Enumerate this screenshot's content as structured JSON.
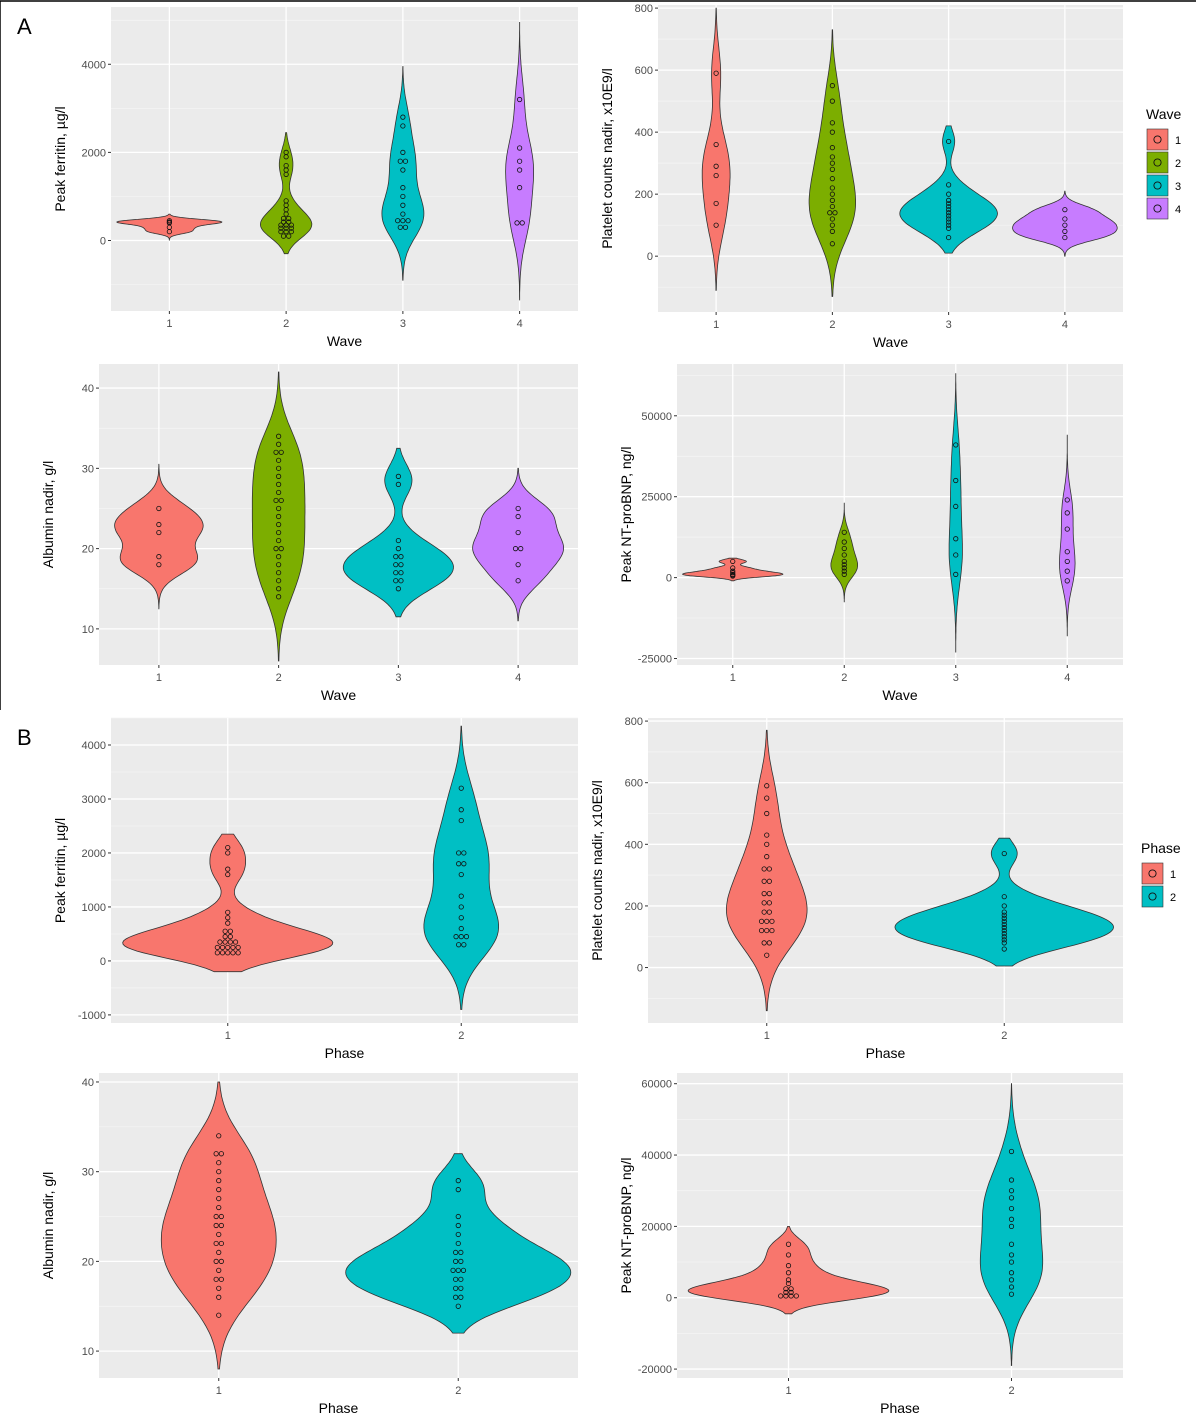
{
  "panel_labels": [
    "A",
    "B"
  ],
  "legends": {
    "wave": {
      "title": "Wave",
      "entries": [
        {
          "label": "1",
          "color": "#F8766D"
        },
        {
          "label": "2",
          "color": "#7CAE00"
        },
        {
          "label": "3",
          "color": "#00BFC4"
        },
        {
          "label": "4",
          "color": "#C77CFF"
        }
      ]
    },
    "phase": {
      "title": "Phase",
      "entries": [
        {
          "label": "1",
          "color": "#F8766D"
        },
        {
          "label": "2",
          "color": "#00BFC4"
        }
      ]
    }
  },
  "chart_data": [
    {
      "type": "violin",
      "xlabel": "Wave",
      "ylabel": "Peak ferritin, µg/l",
      "categories": [
        "1",
        "2",
        "3",
        "4"
      ],
      "yticks": [
        0,
        2000,
        4000
      ],
      "ylim": [
        -1600,
        5300
      ],
      "series": [
        {
          "name": "1",
          "color": "#F8766D",
          "range": [
            0,
            600
          ],
          "mode": 400,
          "max_width": 0.45,
          "points": [
            200,
            300,
            400,
            420,
            450
          ]
        },
        {
          "name": "2",
          "color": "#7CAE00",
          "range": [
            -300,
            2450
          ],
          "mode": 380,
          "max_width": 0.22,
          "points": [
            100,
            150,
            200,
            220,
            250,
            280,
            300,
            320,
            350,
            380,
            400,
            420,
            450,
            500,
            550,
            600,
            700,
            800,
            900,
            1500,
            1600,
            1700,
            1900,
            2000
          ]
        },
        {
          "name": "3",
          "color": "#00BFC4",
          "range": [
            -900,
            3950
          ],
          "mode": 500,
          "max_width": 0.18,
          "points": [
            300,
            400,
            450,
            500,
            500,
            600,
            800,
            1000,
            1200,
            1600,
            1800,
            1900,
            2000,
            2600,
            2800
          ]
        },
        {
          "name": "4",
          "color": "#C77CFF",
          "range": [
            -1350,
            4950
          ],
          "mode": 1500,
          "max_width": 0.12,
          "points": [
            400,
            500,
            1200,
            1600,
            1800,
            2100,
            3200
          ]
        }
      ]
    },
    {
      "type": "violin",
      "xlabel": "Wave",
      "ylabel": "Platelet counts nadir, x10E9/l",
      "categories": [
        "1",
        "2",
        "3",
        "4"
      ],
      "yticks": [
        0,
        200,
        400,
        600,
        800
      ],
      "ylim": [
        -180,
        810
      ],
      "series": [
        {
          "name": "1",
          "color": "#F8766D",
          "range": [
            -110,
            800
          ],
          "mode": 250,
          "max_width": 0.12,
          "points": [
            100,
            170,
            260,
            290,
            360,
            590
          ]
        },
        {
          "name": "2",
          "color": "#7CAE00",
          "range": [
            -130,
            730
          ],
          "mode": 160,
          "max_width": 0.2,
          "points": [
            40,
            80,
            100,
            120,
            140,
            150,
            160,
            180,
            200,
            220,
            250,
            280,
            300,
            320,
            350,
            400,
            430,
            500,
            550
          ]
        },
        {
          "name": "3",
          "color": "#00BFC4",
          "range": [
            10,
            420
          ],
          "mode": 140,
          "max_width": 0.42,
          "points": [
            60,
            90,
            100,
            110,
            120,
            130,
            140,
            150,
            160,
            170,
            180,
            200,
            230,
            370
          ]
        },
        {
          "name": "4",
          "color": "#C77CFF",
          "range": [
            0,
            210
          ],
          "mode": 110,
          "max_width": 0.45,
          "points": [
            60,
            80,
            100,
            120,
            150
          ]
        }
      ]
    },
    {
      "type": "violin",
      "xlabel": "Wave",
      "ylabel": "Albumin nadir, g/l",
      "categories": [
        "1",
        "2",
        "3",
        "4"
      ],
      "yticks": [
        10,
        20,
        30,
        40
      ],
      "ylim": [
        5.5,
        43
      ],
      "series": [
        {
          "name": "1",
          "color": "#F8766D",
          "range": [
            12.5,
            30.5
          ],
          "mode": 22,
          "max_width": 0.37,
          "points": [
            18,
            19,
            22,
            23,
            25
          ]
        },
        {
          "name": "2",
          "color": "#7CAE00",
          "range": [
            6,
            42
          ],
          "mode": 24,
          "max_width": 0.22,
          "points": [
            14,
            15,
            16,
            17,
            18,
            19,
            20,
            20,
            21,
            22,
            23,
            24,
            25,
            26,
            26,
            27,
            28,
            29,
            30,
            31,
            32,
            32,
            33,
            34
          ]
        },
        {
          "name": "3",
          "color": "#00BFC4",
          "range": [
            11.5,
            32.5
          ],
          "mode": 18.5,
          "max_width": 0.46,
          "points": [
            15,
            16,
            16,
            17,
            17,
            18,
            18,
            19,
            19,
            20,
            21,
            28,
            29
          ]
        },
        {
          "name": "4",
          "color": "#C77CFF",
          "range": [
            11,
            30
          ],
          "mode": 20,
          "max_width": 0.38,
          "points": [
            16,
            18,
            20,
            20,
            22,
            24,
            25
          ]
        }
      ]
    },
    {
      "type": "violin",
      "xlabel": "Wave",
      "ylabel": "Peak NT-proBNP, ng/l",
      "categories": [
        "1",
        "2",
        "3",
        "4"
      ],
      "yticks": [
        -25000,
        0,
        25000,
        50000
      ],
      "ylim": [
        -27000,
        66000
      ],
      "series": [
        {
          "name": "1",
          "color": "#F8766D",
          "range": [
            -1000,
            6000
          ],
          "mode": 1000,
          "max_width": 0.45,
          "points": [
            500,
            800,
            1000,
            1500,
            2000,
            3000,
            5000
          ]
        },
        {
          "name": "2",
          "color": "#7CAE00",
          "range": [
            -7500,
            23000
          ],
          "mode": 4000,
          "max_width": 0.12,
          "points": [
            1000,
            2000,
            3000,
            4000,
            5000,
            7000,
            9000,
            11000,
            14000
          ]
        },
        {
          "name": "3",
          "color": "#00BFC4",
          "range": [
            -23000,
            63000
          ],
          "mode": 10000,
          "max_width": 0.06,
          "points": [
            1000,
            7000,
            12000,
            22000,
            30000,
            41000
          ]
        },
        {
          "name": "4",
          "color": "#C77CFF",
          "range": [
            -18000,
            44000
          ],
          "mode": 8000,
          "max_width": 0.07,
          "points": [
            -1000,
            2000,
            5000,
            8000,
            15000,
            20000,
            24000
          ]
        }
      ]
    },
    {
      "type": "violin",
      "xlabel": "Phase",
      "ylabel": "Peak ferritin, µg/l",
      "categories": [
        "1",
        "2"
      ],
      "yticks": [
        -1000,
        0,
        1000,
        2000,
        3000,
        4000
      ],
      "ylim": [
        -1150,
        4500
      ],
      "series": [
        {
          "name": "1",
          "color": "#F8766D",
          "range": [
            -200,
            2350
          ],
          "mode": 350,
          "max_width": 0.45,
          "points": [
            150,
            150,
            200,
            200,
            200,
            250,
            250,
            300,
            300,
            300,
            350,
            350,
            400,
            400,
            450,
            500,
            550,
            600,
            700,
            800,
            900,
            1600,
            1700,
            2000,
            2100
          ]
        },
        {
          "name": "2",
          "color": "#00BFC4",
          "range": [
            -900,
            4350
          ],
          "mode": 500,
          "max_width": 0.16,
          "points": [
            300,
            400,
            450,
            500,
            500,
            600,
            800,
            1000,
            1200,
            1600,
            1800,
            1900,
            2000,
            2100,
            2600,
            2800,
            3200
          ]
        }
      ]
    },
    {
      "type": "violin",
      "xlabel": "Phase",
      "ylabel": "Platelet counts nadir, x10E9/l",
      "categories": [
        "1",
        "2"
      ],
      "yticks": [
        0,
        200,
        400,
        600,
        800
      ],
      "ylim": [
        -180,
        810
      ],
      "series": [
        {
          "name": "1",
          "color": "#F8766D",
          "range": [
            -140,
            770
          ],
          "mode": 160,
          "max_width": 0.17,
          "points": [
            40,
            80,
            100,
            120,
            130,
            140,
            150,
            160,
            170,
            180,
            200,
            210,
            220,
            240,
            260,
            280,
            300,
            320,
            340,
            360,
            400,
            430,
            500,
            550,
            590
          ]
        },
        {
          "name": "2",
          "color": "#00BFC4",
          "range": [
            5,
            420
          ],
          "mode": 130,
          "max_width": 0.46,
          "points": [
            60,
            80,
            90,
            100,
            110,
            120,
            130,
            140,
            150,
            160,
            170,
            180,
            200,
            230,
            370
          ]
        }
      ]
    },
    {
      "type": "violin",
      "xlabel": "Phase",
      "ylabel": "Albumin nadir, g/l",
      "categories": [
        "1",
        "2"
      ],
      "yticks": [
        10,
        20,
        30,
        40
      ],
      "ylim": [
        7,
        41
      ],
      "series": [
        {
          "name": "1",
          "color": "#F8766D",
          "range": [
            8,
            40
          ],
          "mode": 24,
          "max_width": 0.24,
          "points": [
            14,
            16,
            17,
            18,
            18,
            19,
            20,
            20,
            21,
            22,
            22,
            23,
            24,
            24,
            25,
            25,
            26,
            27,
            28,
            29,
            30,
            31,
            32,
            32,
            34
          ]
        },
        {
          "name": "2",
          "color": "#00BFC4",
          "range": [
            12,
            32
          ],
          "mode": 19,
          "max_width": 0.47,
          "points": [
            15,
            16,
            16,
            17,
            17,
            18,
            18,
            19,
            19,
            19,
            20,
            20,
            21,
            21,
            22,
            23,
            24,
            25,
            28,
            29
          ]
        }
      ]
    },
    {
      "type": "violin",
      "xlabel": "Phase",
      "ylabel": "Peak NT-proBNP, ng/l",
      "categories": [
        "1",
        "2"
      ],
      "yticks": [
        -20000,
        0,
        20000,
        40000,
        60000
      ],
      "ylim": [
        -22500,
        63000
      ],
      "series": [
        {
          "name": "1",
          "color": "#F8766D",
          "range": [
            -4500,
            20000
          ],
          "mode": 2500,
          "max_width": 0.45,
          "points": [
            500,
            800,
            1000,
            1000,
            1500,
            2000,
            2500,
            3000,
            4000,
            5000,
            7000,
            9000,
            12000,
            15000
          ]
        },
        {
          "name": "2",
          "color": "#00BFC4",
          "range": [
            -19000,
            60000
          ],
          "mode": 6000,
          "max_width": 0.14,
          "points": [
            1000,
            3000,
            5000,
            7000,
            10000,
            12000,
            15000,
            20000,
            22000,
            25000,
            28000,
            30000,
            33000,
            41000
          ]
        }
      ]
    }
  ]
}
